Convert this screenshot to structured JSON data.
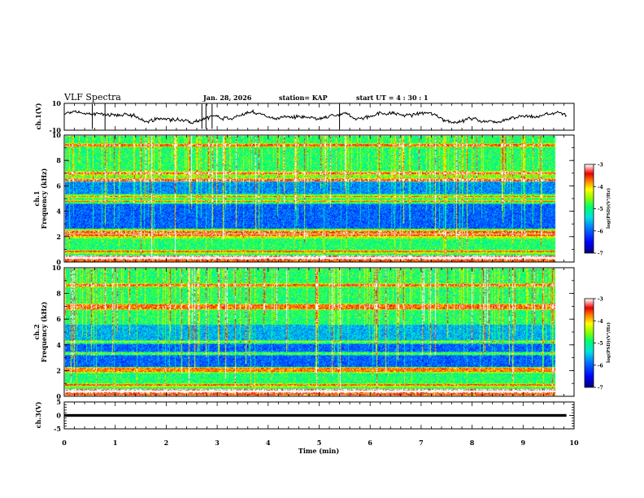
{
  "header": {
    "title": "VLF Spectra",
    "date": "Jan. 28, 2026",
    "station": "station= KAP",
    "start": "start UT =  4 : 30 : 1"
  },
  "colors": {
    "background": "#ffffff",
    "axis": "#000000",
    "colormap": [
      "#00007f",
      "#0000ff",
      "#0077ff",
      "#00e5e5",
      "#00ff66",
      "#88ff00",
      "#ffff00",
      "#ff7700",
      "#ee0000",
      "#ff9a9a",
      "#ffffff"
    ]
  },
  "chart_data": [
    {
      "type": "line",
      "panel": "ch1-waveform",
      "ylabel": "ch.1(V)",
      "ylim": [
        -10,
        10
      ],
      "yticks": [
        10,
        -10
      ],
      "xlim": [
        0,
        10
      ],
      "description_values": {
        "mean_level": 0,
        "fluctuation_range": [
          -4,
          4
        ]
      },
      "series": [
        {
          "name": "ch.1",
          "x_end": 9.85
        }
      ]
    },
    {
      "type": "heatmap",
      "panel": "ch1-spectrogram",
      "ylabel_top": "ch.1",
      "ylabel": "Frequency (kHz)",
      "ylim": [
        0,
        10
      ],
      "yticks": [
        0,
        2,
        4,
        6,
        8,
        10
      ],
      "xlim": [
        0,
        10
      ],
      "data_x_end": 9.85,
      "bands_khz": [
        {
          "lo": 0.0,
          "hi": 0.5,
          "level": -3.6
        },
        {
          "lo": 0.5,
          "hi": 1.8,
          "level": -4.9
        },
        {
          "lo": 1.8,
          "hi": 2.6,
          "level": -4.6
        },
        {
          "lo": 2.6,
          "hi": 4.8,
          "level": -6.0
        },
        {
          "lo": 4.8,
          "hi": 5.2,
          "level": -4.8
        },
        {
          "lo": 5.2,
          "hi": 6.4,
          "level": -5.8
        },
        {
          "lo": 6.4,
          "hi": 7.2,
          "level": -4.6
        },
        {
          "lo": 7.2,
          "hi": 10.0,
          "level": -4.9
        }
      ],
      "lines_khz": [
        0.3,
        0.8,
        2.1,
        2.35,
        4.75,
        5.25,
        6.5,
        7.05,
        9.3
      ],
      "colorbar": {
        "label": "log(PSD)(V²/Hz)",
        "range": [
          -7,
          -3
        ],
        "ticks": [
          -3,
          -4,
          -5,
          -6,
          -7
        ]
      }
    },
    {
      "type": "heatmap",
      "panel": "ch2-spectrogram",
      "ylabel_top": "ch.2",
      "ylabel": "Frequency (kHz)",
      "ylim": [
        0,
        10
      ],
      "yticks": [
        0,
        2,
        4,
        6,
        8,
        10
      ],
      "xlim": [
        0,
        10
      ],
      "data_x_end": 9.85,
      "bands_khz": [
        {
          "lo": 0.0,
          "hi": 0.5,
          "level": -3.6
        },
        {
          "lo": 0.5,
          "hi": 1.6,
          "level": -4.9
        },
        {
          "lo": 1.6,
          "hi": 2.2,
          "level": -5.0
        },
        {
          "lo": 2.2,
          "hi": 4.2,
          "level": -6.0
        },
        {
          "lo": 4.2,
          "hi": 5.6,
          "level": -5.6
        },
        {
          "lo": 5.6,
          "hi": 10.0,
          "level": -4.9
        }
      ],
      "lines_khz": [
        0.3,
        0.8,
        1.9,
        2.05,
        3.3,
        4.2,
        6.9,
        7.1,
        8.7
      ],
      "colorbar": {
        "label": "log(PSD)(V²/Hz)",
        "range": [
          -7,
          -3
        ],
        "ticks": [
          -3,
          -4,
          -5,
          -6,
          -7
        ]
      }
    },
    {
      "type": "line",
      "panel": "ch3-waveform",
      "ylabel": "ch.3(V)",
      "ylim": [
        -5,
        5
      ],
      "yticks": [
        5,
        0,
        -5
      ],
      "xlim": [
        0,
        10
      ],
      "series": [
        {
          "name": "ch.3",
          "x_end": 9.85,
          "band": [
            -0.5,
            0.5
          ]
        }
      ]
    }
  ],
  "xaxis": {
    "label": "Time (min)",
    "ticks": [
      0,
      1,
      2,
      3,
      4,
      5,
      6,
      7,
      8,
      9,
      10
    ]
  },
  "colorbar_label": "log(PSD)(V²/Hz)"
}
